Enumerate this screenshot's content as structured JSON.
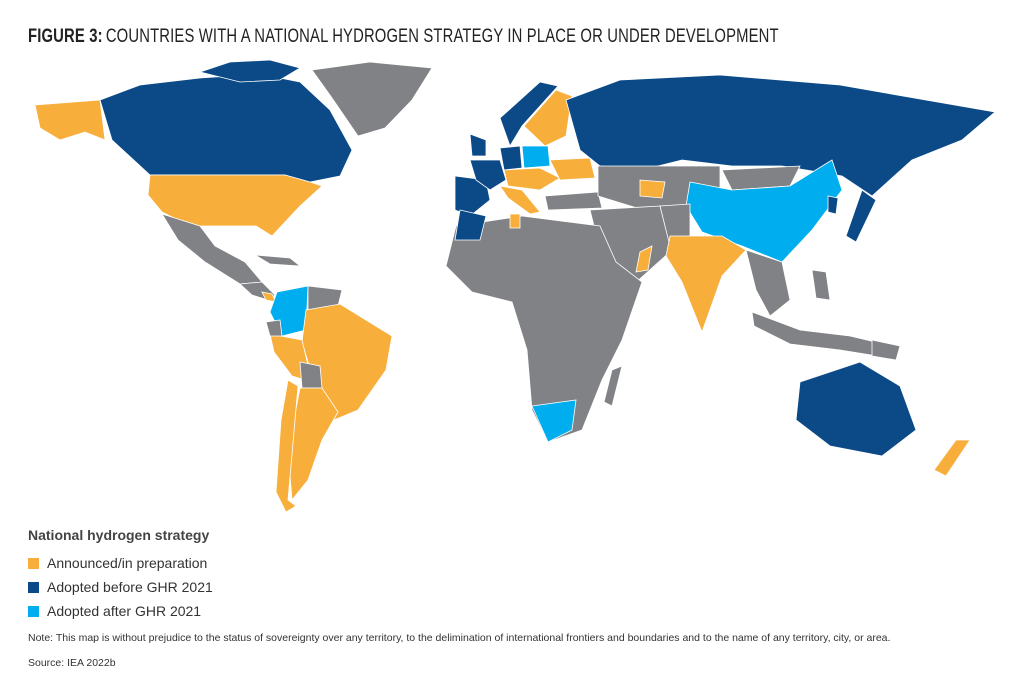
{
  "title": {
    "label": "FIGURE 3:",
    "text": "COUNTRIES WITH A NATIONAL HYDROGEN STRATEGY IN PLACE OR UNDER DEVELOPMENT"
  },
  "legend": {
    "title": "National hydrogen strategy",
    "items": [
      {
        "label": "Announced/in preparation",
        "color": "#f7ae3b"
      },
      {
        "label": "Adopted before GHR 2021",
        "color": "#0b4a87"
      },
      {
        "label": "Adopted after GHR 2021",
        "color": "#00aeef"
      }
    ]
  },
  "note": "Note: This map is without prejudice to the status of sovereignty over any territory, to the delimination of international frontiers and boundaries and to the name of any territory, city, or area.",
  "source": "Source: IEA 2022b"
}
